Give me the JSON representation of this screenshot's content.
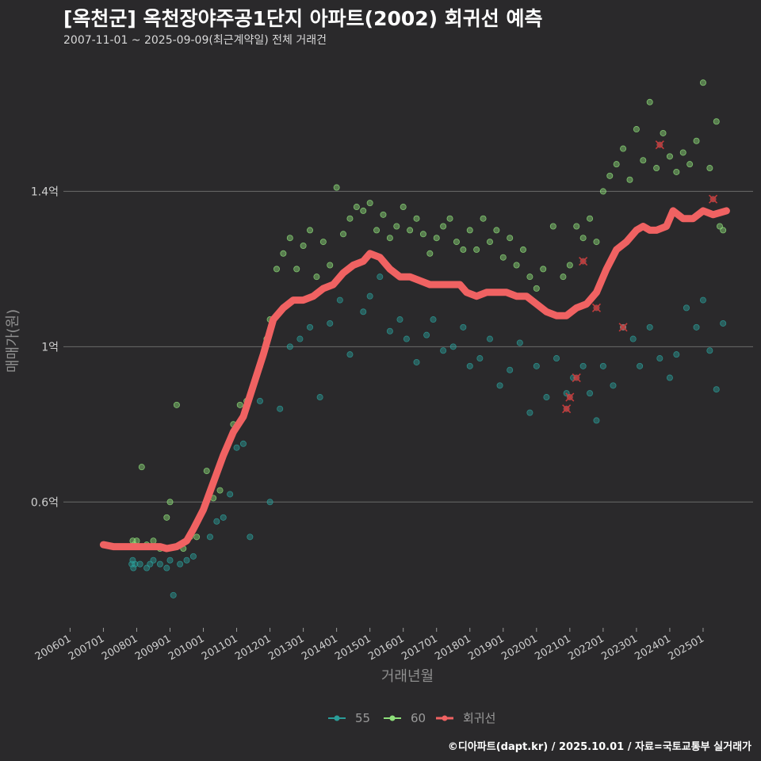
{
  "header": {
    "title": "[옥천군] 옥천장야주공1단지 아파트(2002) 회귀선 예측",
    "subtitle": "2007-11-01 ~ 2025-09-09(최근계약일) 전체 거래건"
  },
  "caption": "©디아파트(dapt.kr) / 2025.10.01 / 자료=국토교통부 실거래가",
  "chart_data": {
    "type": "scatter",
    "xlabel": "거래년월",
    "ylabel": "매매가(원)",
    "xlim": [
      2005.8,
      2026.5
    ],
    "ylim": [
      0.28,
      1.75
    ],
    "y_ticks": [
      {
        "value": 0.6,
        "label": "0.6억"
      },
      {
        "value": 1.0,
        "label": "1억"
      },
      {
        "value": 1.4,
        "label": "1.4억"
      }
    ],
    "x_ticks": [
      {
        "value": 2006.0,
        "label": "200601"
      },
      {
        "value": 2007.0,
        "label": "200701"
      },
      {
        "value": 2008.0,
        "label": "200801"
      },
      {
        "value": 2009.0,
        "label": "200901"
      },
      {
        "value": 2010.0,
        "label": "201001"
      },
      {
        "value": 2011.0,
        "label": "201101"
      },
      {
        "value": 2012.0,
        "label": "201201"
      },
      {
        "value": 2013.0,
        "label": "201301"
      },
      {
        "value": 2014.0,
        "label": "201401"
      },
      {
        "value": 2015.0,
        "label": "201501"
      },
      {
        "value": 2016.0,
        "label": "201601"
      },
      {
        "value": 2017.0,
        "label": "201701"
      },
      {
        "value": 2018.0,
        "label": "201801"
      },
      {
        "value": 2019.0,
        "label": "201901"
      },
      {
        "value": 2020.0,
        "label": "202001"
      },
      {
        "value": 2021.0,
        "label": "202101"
      },
      {
        "value": 2022.0,
        "label": "202201"
      },
      {
        "value": 2023.0,
        "label": "202301"
      },
      {
        "value": 2024.0,
        "label": "202401"
      },
      {
        "value": 2025.0,
        "label": "202501"
      }
    ],
    "legend": {
      "position": "bottom",
      "items": [
        {
          "name": "55",
          "color": "#2a9d99"
        },
        {
          "name": "60",
          "color": "#8ee07a"
        },
        {
          "name": "회귀선",
          "color": "#f06262"
        }
      ]
    },
    "series": [
      {
        "name": "55",
        "color": "#2a9d99",
        "points": [
          [
            2007.85,
            0.44
          ],
          [
            2007.88,
            0.45
          ],
          [
            2007.9,
            0.43
          ],
          [
            2007.95,
            0.44
          ],
          [
            2008.1,
            0.44
          ],
          [
            2008.3,
            0.43
          ],
          [
            2008.4,
            0.44
          ],
          [
            2008.5,
            0.45
          ],
          [
            2008.7,
            0.44
          ],
          [
            2008.9,
            0.43
          ],
          [
            2009.0,
            0.45
          ],
          [
            2009.1,
            0.36
          ],
          [
            2009.3,
            0.44
          ],
          [
            2009.5,
            0.45
          ],
          [
            2009.7,
            0.46
          ],
          [
            2010.2,
            0.51
          ],
          [
            2010.4,
            0.55
          ],
          [
            2010.6,
            0.56
          ],
          [
            2010.8,
            0.62
          ],
          [
            2011.0,
            0.74
          ],
          [
            2011.2,
            0.75
          ],
          [
            2011.4,
            0.51
          ],
          [
            2011.7,
            0.86
          ],
          [
            2012.0,
            0.6
          ],
          [
            2012.3,
            0.84
          ],
          [
            2012.6,
            1.0
          ],
          [
            2012.9,
            1.02
          ],
          [
            2013.2,
            1.05
          ],
          [
            2013.5,
            0.87
          ],
          [
            2013.8,
            1.06
          ],
          [
            2014.1,
            1.12
          ],
          [
            2014.4,
            0.98
          ],
          [
            2014.8,
            1.09
          ],
          [
            2015.0,
            1.13
          ],
          [
            2015.3,
            1.18
          ],
          [
            2015.6,
            1.04
          ],
          [
            2015.9,
            1.07
          ],
          [
            2016.1,
            1.02
          ],
          [
            2016.4,
            0.96
          ],
          [
            2016.7,
            1.03
          ],
          [
            2016.9,
            1.07
          ],
          [
            2017.2,
            0.99
          ],
          [
            2017.5,
            1.0
          ],
          [
            2017.8,
            1.05
          ],
          [
            2018.0,
            0.95
          ],
          [
            2018.3,
            0.97
          ],
          [
            2018.6,
            1.02
          ],
          [
            2018.9,
            0.9
          ],
          [
            2019.2,
            0.94
          ],
          [
            2019.5,
            1.01
          ],
          [
            2019.8,
            0.83
          ],
          [
            2020.0,
            0.95
          ],
          [
            2020.3,
            0.87
          ],
          [
            2020.6,
            0.97
          ],
          [
            2020.9,
            0.88
          ],
          [
            2021.1,
            0.92
          ],
          [
            2021.4,
            0.95
          ],
          [
            2021.6,
            0.88
          ],
          [
            2021.8,
            0.81
          ],
          [
            2022.0,
            0.95
          ],
          [
            2022.3,
            0.9
          ],
          [
            2022.6,
            1.05
          ],
          [
            2022.9,
            1.02
          ],
          [
            2023.1,
            0.95
          ],
          [
            2023.4,
            1.05
          ],
          [
            2023.7,
            0.97
          ],
          [
            2024.0,
            0.92
          ],
          [
            2024.2,
            0.98
          ],
          [
            2024.5,
            1.1
          ],
          [
            2024.8,
            1.05
          ],
          [
            2025.0,
            1.12
          ],
          [
            2025.2,
            0.99
          ],
          [
            2025.4,
            0.89
          ],
          [
            2025.6,
            1.06
          ]
        ]
      },
      {
        "name": "60",
        "color": "#8ee07a",
        "points": [
          [
            2007.88,
            0.5
          ],
          [
            2007.92,
            0.49
          ],
          [
            2008.0,
            0.5
          ],
          [
            2008.15,
            0.69
          ],
          [
            2008.3,
            0.49
          ],
          [
            2008.5,
            0.5
          ],
          [
            2008.7,
            0.48
          ],
          [
            2008.9,
            0.56
          ],
          [
            2009.0,
            0.6
          ],
          [
            2009.2,
            0.85
          ],
          [
            2009.4,
            0.48
          ],
          [
            2009.6,
            0.51
          ],
          [
            2009.8,
            0.51
          ],
          [
            2010.1,
            0.68
          ],
          [
            2010.3,
            0.61
          ],
          [
            2010.5,
            0.63
          ],
          [
            2010.7,
            0.74
          ],
          [
            2010.9,
            0.8
          ],
          [
            2011.1,
            0.85
          ],
          [
            2011.3,
            0.86
          ],
          [
            2011.5,
            0.9
          ],
          [
            2011.7,
            0.95
          ],
          [
            2011.9,
            1.02
          ],
          [
            2012.0,
            1.07
          ],
          [
            2012.2,
            1.2
          ],
          [
            2012.4,
            1.24
          ],
          [
            2012.6,
            1.28
          ],
          [
            2012.8,
            1.2
          ],
          [
            2013.0,
            1.26
          ],
          [
            2013.2,
            1.3
          ],
          [
            2013.4,
            1.18
          ],
          [
            2013.6,
            1.27
          ],
          [
            2013.8,
            1.21
          ],
          [
            2014.0,
            1.41
          ],
          [
            2014.2,
            1.29
          ],
          [
            2014.4,
            1.33
          ],
          [
            2014.6,
            1.36
          ],
          [
            2014.8,
            1.35
          ],
          [
            2015.0,
            1.37
          ],
          [
            2015.2,
            1.3
          ],
          [
            2015.4,
            1.34
          ],
          [
            2015.6,
            1.28
          ],
          [
            2015.8,
            1.31
          ],
          [
            2016.0,
            1.36
          ],
          [
            2016.2,
            1.3
          ],
          [
            2016.4,
            1.33
          ],
          [
            2016.6,
            1.29
          ],
          [
            2016.8,
            1.24
          ],
          [
            2017.0,
            1.28
          ],
          [
            2017.2,
            1.31
          ],
          [
            2017.4,
            1.33
          ],
          [
            2017.6,
            1.27
          ],
          [
            2017.8,
            1.25
          ],
          [
            2018.0,
            1.3
          ],
          [
            2018.2,
            1.25
          ],
          [
            2018.4,
            1.33
          ],
          [
            2018.6,
            1.27
          ],
          [
            2018.8,
            1.3
          ],
          [
            2019.0,
            1.23
          ],
          [
            2019.2,
            1.28
          ],
          [
            2019.4,
            1.21
          ],
          [
            2019.6,
            1.25
          ],
          [
            2019.8,
            1.18
          ],
          [
            2020.0,
            1.15
          ],
          [
            2020.2,
            1.2
          ],
          [
            2020.5,
            1.31
          ],
          [
            2020.8,
            1.18
          ],
          [
            2021.0,
            1.21
          ],
          [
            2021.2,
            1.31
          ],
          [
            2021.4,
            1.28
          ],
          [
            2021.6,
            1.33
          ],
          [
            2021.8,
            1.27
          ],
          [
            2022.0,
            1.4
          ],
          [
            2022.2,
            1.44
          ],
          [
            2022.4,
            1.47
          ],
          [
            2022.6,
            1.51
          ],
          [
            2022.8,
            1.43
          ],
          [
            2023.0,
            1.56
          ],
          [
            2023.2,
            1.48
          ],
          [
            2023.4,
            1.63
          ],
          [
            2023.6,
            1.46
          ],
          [
            2023.8,
            1.55
          ],
          [
            2024.0,
            1.49
          ],
          [
            2024.2,
            1.45
          ],
          [
            2024.4,
            1.5
          ],
          [
            2024.6,
            1.47
          ],
          [
            2024.8,
            1.53
          ],
          [
            2025.0,
            1.68
          ],
          [
            2025.2,
            1.46
          ],
          [
            2025.4,
            1.58
          ],
          [
            2025.5,
            1.31
          ],
          [
            2025.6,
            1.3
          ]
        ]
      },
      {
        "name": "회귀선",
        "color": "#f06262",
        "type": "line",
        "points": [
          [
            2007.0,
            0.49
          ],
          [
            2007.3,
            0.485
          ],
          [
            2007.6,
            0.485
          ],
          [
            2008.0,
            0.485
          ],
          [
            2008.4,
            0.485
          ],
          [
            2008.7,
            0.485
          ],
          [
            2008.9,
            0.48
          ],
          [
            2009.2,
            0.485
          ],
          [
            2009.5,
            0.5
          ],
          [
            2009.7,
            0.53
          ],
          [
            2010.0,
            0.58
          ],
          [
            2010.3,
            0.65
          ],
          [
            2010.6,
            0.72
          ],
          [
            2010.9,
            0.78
          ],
          [
            2011.2,
            0.82
          ],
          [
            2011.5,
            0.9
          ],
          [
            2011.8,
            0.98
          ],
          [
            2012.1,
            1.07
          ],
          [
            2012.4,
            1.1
          ],
          [
            2012.7,
            1.12
          ],
          [
            2013.0,
            1.12
          ],
          [
            2013.3,
            1.13
          ],
          [
            2013.6,
            1.15
          ],
          [
            2013.9,
            1.16
          ],
          [
            2014.2,
            1.19
          ],
          [
            2014.5,
            1.21
          ],
          [
            2014.8,
            1.22
          ],
          [
            2015.0,
            1.24
          ],
          [
            2015.3,
            1.23
          ],
          [
            2015.6,
            1.2
          ],
          [
            2015.9,
            1.18
          ],
          [
            2016.2,
            1.18
          ],
          [
            2016.5,
            1.17
          ],
          [
            2016.8,
            1.16
          ],
          [
            2017.1,
            1.16
          ],
          [
            2017.4,
            1.16
          ],
          [
            2017.7,
            1.16
          ],
          [
            2017.9,
            1.14
          ],
          [
            2018.2,
            1.13
          ],
          [
            2018.5,
            1.14
          ],
          [
            2018.8,
            1.14
          ],
          [
            2019.1,
            1.14
          ],
          [
            2019.4,
            1.13
          ],
          [
            2019.7,
            1.13
          ],
          [
            2020.0,
            1.11
          ],
          [
            2020.3,
            1.09
          ],
          [
            2020.6,
            1.08
          ],
          [
            2020.9,
            1.08
          ],
          [
            2021.2,
            1.1
          ],
          [
            2021.5,
            1.11
          ],
          [
            2021.8,
            1.14
          ],
          [
            2022.1,
            1.2
          ],
          [
            2022.4,
            1.25
          ],
          [
            2022.7,
            1.27
          ],
          [
            2023.0,
            1.3
          ],
          [
            2023.2,
            1.31
          ],
          [
            2023.4,
            1.3
          ],
          [
            2023.6,
            1.3
          ],
          [
            2023.9,
            1.31
          ],
          [
            2024.1,
            1.35
          ],
          [
            2024.4,
            1.33
          ],
          [
            2024.7,
            1.33
          ],
          [
            2025.0,
            1.35
          ],
          [
            2025.3,
            1.34
          ],
          [
            2025.7,
            1.35
          ]
        ]
      }
    ],
    "outliers": [
      [
        2020.9,
        0.84
      ],
      [
        2021.0,
        0.87
      ],
      [
        2021.2,
        0.92
      ],
      [
        2021.4,
        1.22
      ],
      [
        2021.8,
        1.1
      ],
      [
        2022.6,
        1.05
      ],
      [
        2023.7,
        1.52
      ],
      [
        2025.3,
        1.38
      ]
    ]
  }
}
